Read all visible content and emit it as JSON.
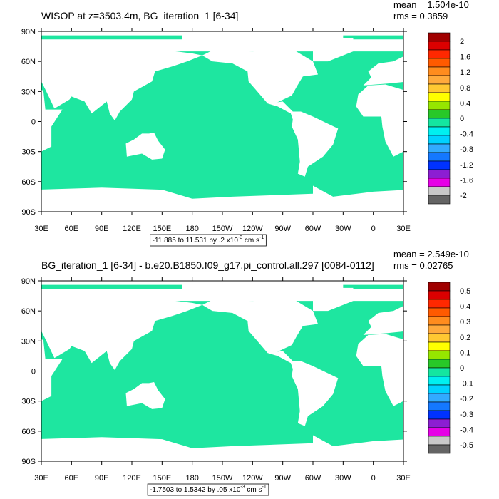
{
  "panels": [
    {
      "title": "WISOP at z=3503.4m, BG_iteration_1 [6-34]",
      "mean": "mean = 1.504e-10",
      "rms": "rms = 0.3859",
      "lat_labels": [
        "90N",
        "60N",
        "30N",
        "0",
        "30S",
        "60S",
        "90S"
      ],
      "lon_labels": [
        "30E",
        "60E",
        "90E",
        "120E",
        "150E",
        "180",
        "150W",
        "120W",
        "90W",
        "60W",
        "30W",
        "0",
        "30E"
      ],
      "colorbar_labels": [
        "2",
        "1.6",
        "1.2",
        "0.8",
        "0.4",
        "0",
        "-0.4",
        "-0.8",
        "-1.2",
        "-1.6",
        "-2"
      ],
      "info": [
        "-11.885 to 11.531 by .2 x10",
        "-3",
        " cm s",
        "-1"
      ]
    },
    {
      "title": "BG_iteration_1 [6-34] - b.e20.B1850.f09_g17.pi_control.all.297 [0084-0112]",
      "mean": "mean = 2.549e-10",
      "rms": "rms = 0.02765",
      "lat_labels": [
        "90N",
        "60N",
        "30N",
        "0",
        "30S",
        "60S",
        "90S"
      ],
      "lon_labels": [
        "30E",
        "60E",
        "90E",
        "120E",
        "150E",
        "180",
        "150W",
        "120W",
        "90W",
        "60W",
        "30W",
        "0",
        "30E"
      ],
      "colorbar_labels": [
        "0.5",
        "0.4",
        "0.3",
        "0.2",
        "0.1",
        "0",
        "-0.1",
        "-0.2",
        "-0.3",
        "-0.4",
        "-0.5"
      ],
      "info": [
        "-1.7503 to 1.5342 by .05 x10",
        "-3",
        " cm s",
        "-1"
      ]
    }
  ],
  "colorbar_colors": [
    "#a00000",
    "#dc0000",
    "#ff2800",
    "#ff5a00",
    "#ff8c1e",
    "#ffaa3c",
    "#ffc832",
    "#ffff00",
    "#96e600",
    "#28c828",
    "#14e6a0",
    "#00f0f0",
    "#00d2ff",
    "#32aaff",
    "#1478ff",
    "#0032ff",
    "#8c1ed2",
    "#e600e6",
    "#c8c8c8",
    "#646464"
  ],
  "field_color": "#1ee6a0"
}
